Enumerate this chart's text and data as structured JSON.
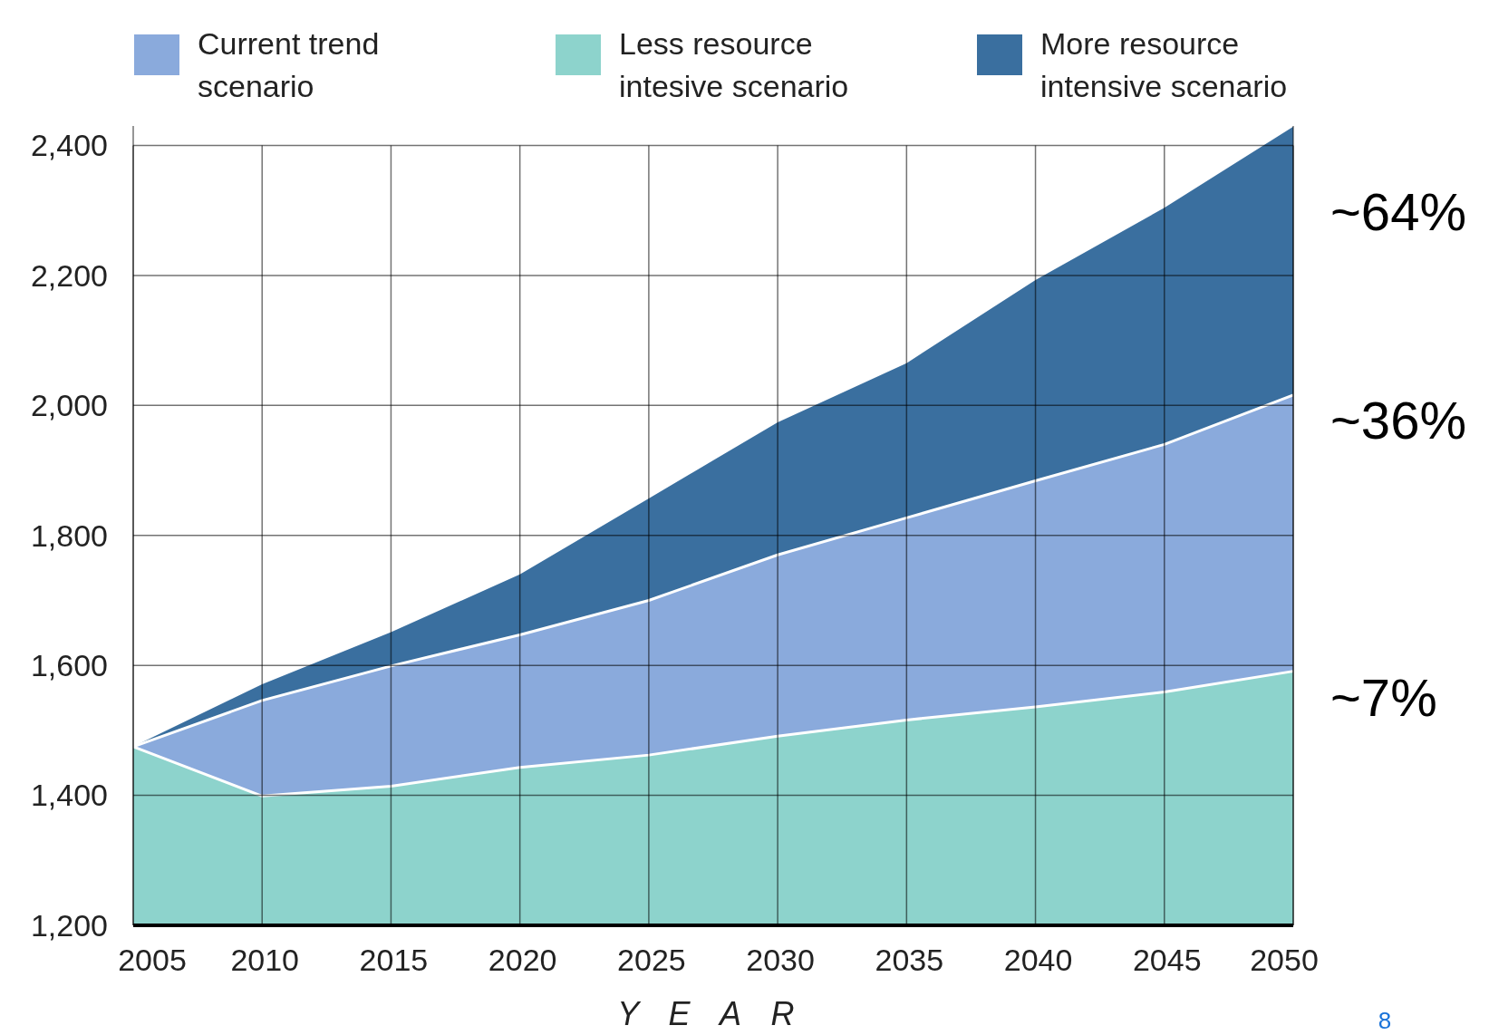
{
  "chart_data": {
    "type": "area",
    "xlabel": "YEAR",
    "x": [
      2005,
      2010,
      2015,
      2020,
      2025,
      2030,
      2035,
      2040,
      2045,
      2050
    ],
    "series": [
      {
        "name": "Current trend scenario",
        "color": "#8aaadc",
        "values": [
          1475,
          1546,
          1599,
          1647,
          1700,
          1770,
          1827,
          1884,
          1940,
          2016
        ]
      },
      {
        "name": "Less resource intesive scenario",
        "color": "#8dd3cc",
        "values": [
          1475,
          1399,
          1414,
          1443,
          1462,
          1491,
          1516,
          1536,
          1559,
          1591
        ]
      },
      {
        "name": "More resource intensive scenario",
        "color": "#3a6f9f",
        "values": [
          1475,
          1571,
          1651,
          1740,
          1857,
          1974,
          2065,
          2193,
          2304,
          2429
        ]
      }
    ],
    "xlim": [
      2005,
      2050
    ],
    "xticks": [
      2005,
      2010,
      2015,
      2020,
      2025,
      2030,
      2035,
      2040,
      2045,
      2050
    ],
    "ylim": [
      1200,
      2430
    ],
    "yticks": [
      {
        "value": 1200,
        "label": "1,200"
      },
      {
        "value": 1400,
        "label": "1,400"
      },
      {
        "value": 1600,
        "label": "1,600"
      },
      {
        "value": 1800,
        "label": "1,800"
      },
      {
        "value": 2000,
        "label": "2,000"
      },
      {
        "value": 2200,
        "label": "2,200"
      },
      {
        "value": 2400,
        "label": "2,400"
      }
    ],
    "grid": true,
    "legend": "top",
    "annotations": [
      "~64%",
      "~36%",
      "~7%",
      "8"
    ]
  }
}
